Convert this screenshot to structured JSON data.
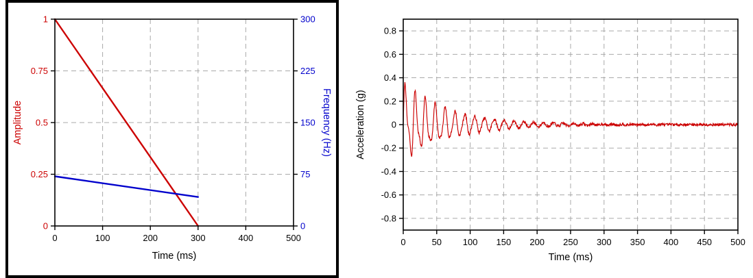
{
  "figure": {
    "background": "#ffffff",
    "frame_color": "#000000",
    "grid_color": "#a9a9a9"
  },
  "chart_data": [
    {
      "id": "sweep-profile",
      "type": "line",
      "title": "",
      "xlabel": "Time (ms)",
      "xlim": [
        0,
        500
      ],
      "xticks": [
        0,
        100,
        200,
        300,
        400,
        500
      ],
      "xtick_labels": [
        "0",
        "100",
        "200",
        "300",
        "400",
        "500"
      ],
      "grid": true,
      "left_axis": {
        "label": "Amplitude",
        "color": "#cc0000",
        "lim": [
          0,
          1
        ],
        "ticks": [
          0,
          0.25,
          0.5,
          0.75,
          1
        ],
        "tick_labels": [
          "0",
          "0.25",
          "0.5",
          "0.75",
          "1"
        ]
      },
      "right_axis": {
        "label": "Frequency (Hz)",
        "color": "#0000cc",
        "lim": [
          0,
          300
        ],
        "ticks": [
          0,
          75,
          150,
          225,
          300
        ],
        "tick_labels": [
          "0",
          "75",
          "150",
          "225",
          "300"
        ]
      },
      "series": [
        {
          "name": "amplitude-ramp",
          "axis": "left",
          "color": "#cc0000",
          "points": [
            [
              0,
              1
            ],
            [
              300,
              0
            ]
          ]
        },
        {
          "name": "frequency-sweep",
          "axis": "right",
          "color": "#0000cc",
          "points": [
            [
              0,
              72
            ],
            [
              300,
              42
            ]
          ]
        }
      ]
    },
    {
      "id": "acceleration-response",
      "type": "line",
      "title": "",
      "xlabel": "Time (ms)",
      "ylabel": "Acceleration (g)",
      "xlim": [
        0,
        500
      ],
      "ylim": [
        -0.9,
        0.9
      ],
      "xticks": [
        0,
        50,
        100,
        150,
        200,
        250,
        300,
        350,
        400,
        450,
        500
      ],
      "xtick_labels": [
        "0",
        "50",
        "100",
        "150",
        "200",
        "250",
        "300",
        "350",
        "400",
        "450",
        "500"
      ],
      "yticks": [
        -0.8,
        -0.6,
        -0.4,
        -0.2,
        0,
        0.2,
        0.4,
        0.6,
        0.8
      ],
      "ytick_labels": [
        "-0.8",
        "-0.6",
        "-0.4",
        "-0.2",
        "0",
        "0.2",
        "0.4",
        "0.6",
        "0.8"
      ],
      "grid": true,
      "series": [
        {
          "name": "acceleration",
          "color": "#cc0000",
          "signal": {
            "model": "decaying-oscillation-with-noise",
            "peak_g": 0.28,
            "trough_g": -0.28,
            "settle_time_ms": 250,
            "modes": [
              {
                "amp_g": 0.29,
                "decay_ms": 75,
                "freq_hz": 68
              },
              {
                "amp_g": 0.13,
                "decay_ms": 38,
                "freq_hz": 131
              }
            ],
            "noise_g": 0.012,
            "duration_ms": 500,
            "step_ms": 0.5,
            "seed": 7
          }
        }
      ]
    }
  ]
}
